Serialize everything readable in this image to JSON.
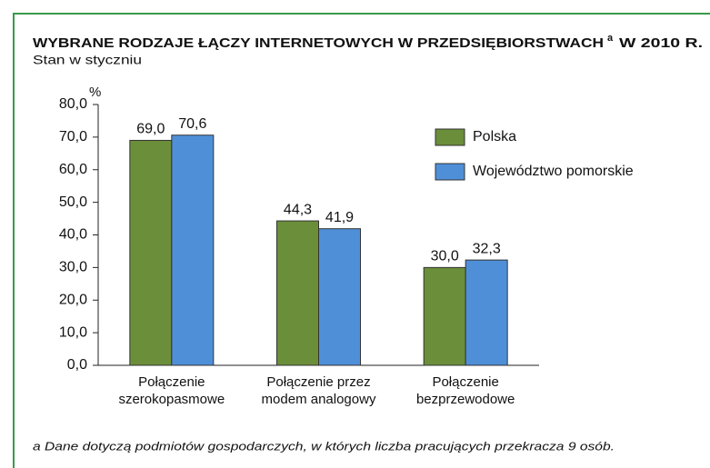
{
  "chart_data": {
    "type": "bar",
    "title": "WYBRANE RODZAJE ŁĄCZY INTERNETOWYCH W PRZEDSIĘBIORSTWACH",
    "title_marker": "a",
    "title_suffix": "W 2010 R.",
    "subtitle": "Stan w styczniu",
    "y_label": "%",
    "categories": [
      "Połączenie\nszerokopasmowe",
      "Połączenie przez\nmodem analogowy",
      "Połączenie\nbezprzewodowe"
    ],
    "series": [
      {
        "name": "Polska",
        "color": "#6b8e3a",
        "values": [
          69.0,
          44.3,
          30.0
        ],
        "value_labels": [
          "69,0",
          "44,3",
          "30,0"
        ]
      },
      {
        "name": "Województwo pomorskie",
        "color": "#4f8fd8",
        "values": [
          70.6,
          41.9,
          32.3
        ],
        "value_labels": [
          "70,6",
          "41,9",
          "32,3"
        ]
      }
    ],
    "ylim": [
      0,
      80
    ],
    "yticks": [
      {
        "value": 0,
        "label": "0,0"
      },
      {
        "value": 10,
        "label": "10,0"
      },
      {
        "value": 20,
        "label": "20,0"
      },
      {
        "value": 30,
        "label": "30,0"
      },
      {
        "value": 40,
        "label": "40,0"
      },
      {
        "value": 50,
        "label": "50,0"
      },
      {
        "value": 60,
        "label": "60,0"
      },
      {
        "value": 70,
        "label": "70,0"
      },
      {
        "value": 80,
        "label": "80,0"
      }
    ],
    "legend": "upper right",
    "footnote": "a Dane dotyczą podmiotów gospodarczych, w których liczba pracujących przekracza 9 osób."
  }
}
